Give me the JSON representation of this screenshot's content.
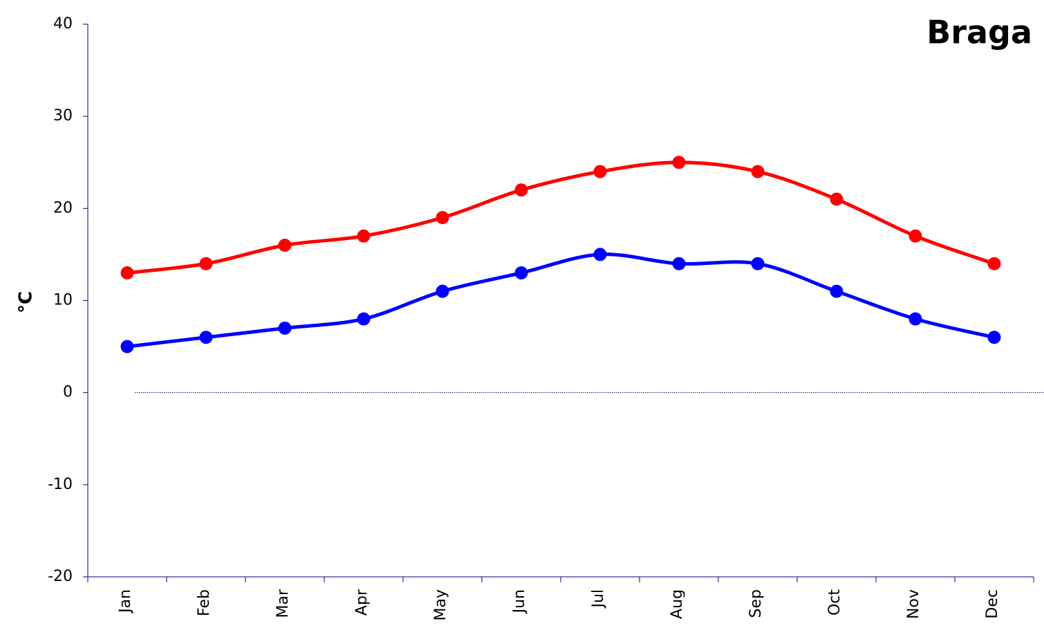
{
  "chart_data": {
    "type": "line",
    "title": "Braga",
    "y_label": "°C",
    "categories": [
      "Jan",
      "Feb",
      "Mar",
      "Apr",
      "May",
      "Jun",
      "Jul",
      "Aug",
      "Sep",
      "Oct",
      "Nov",
      "Dec"
    ],
    "series": [
      {
        "color": "#ff0000",
        "values": [
          13,
          14,
          16,
          17,
          19,
          22,
          24,
          25,
          24,
          21,
          17,
          14
        ]
      },
      {
        "color": "#0000ff",
        "values": [
          5,
          6,
          7,
          8,
          11,
          13,
          15,
          14,
          14,
          11,
          8,
          6
        ]
      }
    ],
    "ylim": [
      -20,
      40
    ],
    "yticks": [
      -20,
      -10,
      0,
      10,
      20,
      30,
      40
    ],
    "zero_line": true,
    "smooth": true,
    "markers": true
  }
}
